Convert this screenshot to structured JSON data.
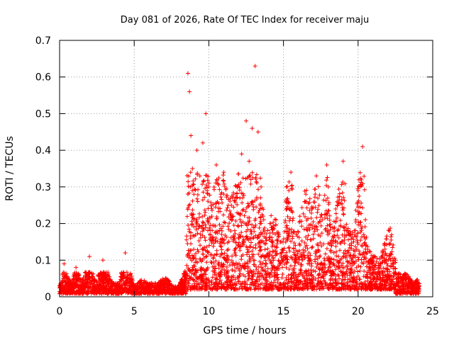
{
  "chart_data": {
    "type": "scatter",
    "title": "Day 081 of 2026, Rate Of TEC Index for receiver maju",
    "xlabel": "GPS time / hours",
    "ylabel": "ROTI / TECUs",
    "xlim": [
      0,
      25
    ],
    "ylim": [
      0,
      0.7
    ],
    "xticks": [
      0,
      5,
      10,
      15,
      20,
      25
    ],
    "yticks": [
      0,
      0.1,
      0.2,
      0.3,
      0.4,
      0.5,
      0.6,
      0.7
    ],
    "xtick_labels": [
      "0",
      "5",
      "10",
      "15",
      "20",
      "25"
    ],
    "ytick_labels": [
      "0",
      "0.1",
      "0.2",
      "0.3",
      "0.4",
      "0.5",
      "0.6",
      "0.7"
    ],
    "grid": true,
    "marker": "+",
    "marker_color": "#ff0000",
    "series": [
      {
        "name": "ROTI",
        "description_note": "",
        "x": [
          0.1,
          0.3,
          0.5,
          0.8,
          1.1,
          1.5,
          2.0,
          2.4,
          2.9,
          3.5,
          4.0,
          4.4,
          5.0,
          5.5,
          6.0,
          6.6,
          7.1,
          7.6,
          8.0,
          8.4,
          8.6,
          8.7,
          8.8,
          8.9,
          9.0,
          9.2,
          9.4,
          9.6,
          9.8,
          10.0,
          10.2,
          10.5,
          10.8,
          11.0,
          11.3,
          11.6,
          11.9,
          12.2,
          12.5,
          12.7,
          12.9,
          13.1,
          13.3,
          13.5,
          13.8,
          14.1,
          14.5,
          14.9,
          15.2,
          15.5,
          15.8,
          16.1,
          16.5,
          16.9,
          17.2,
          17.6,
          17.9,
          18.2,
          18.6,
          19.0,
          19.3,
          19.7,
          20.0,
          20.3,
          20.6,
          21.0,
          21.4,
          21.8,
          22.1,
          22.5,
          22.9,
          23.3,
          23.7,
          24.0
        ],
        "y": [
          0.02,
          0.09,
          0.05,
          0.03,
          0.08,
          0.03,
          0.11,
          0.03,
          0.1,
          0.03,
          0.03,
          0.12,
          0.02,
          0.04,
          0.03,
          0.03,
          0.05,
          0.02,
          0.02,
          0.07,
          0.61,
          0.56,
          0.44,
          0.35,
          0.28,
          0.4,
          0.33,
          0.42,
          0.5,
          0.3,
          0.22,
          0.36,
          0.28,
          0.34,
          0.25,
          0.27,
          0.3,
          0.39,
          0.48,
          0.37,
          0.46,
          0.63,
          0.45,
          0.3,
          0.16,
          0.2,
          0.21,
          0.12,
          0.3,
          0.34,
          0.14,
          0.22,
          0.28,
          0.24,
          0.33,
          0.21,
          0.36,
          0.14,
          0.25,
          0.37,
          0.18,
          0.15,
          0.29,
          0.41,
          0.12,
          0.1,
          0.08,
          0.13,
          0.18,
          0.1,
          0.05,
          0.06,
          0.03,
          0.04
        ]
      }
    ]
  }
}
